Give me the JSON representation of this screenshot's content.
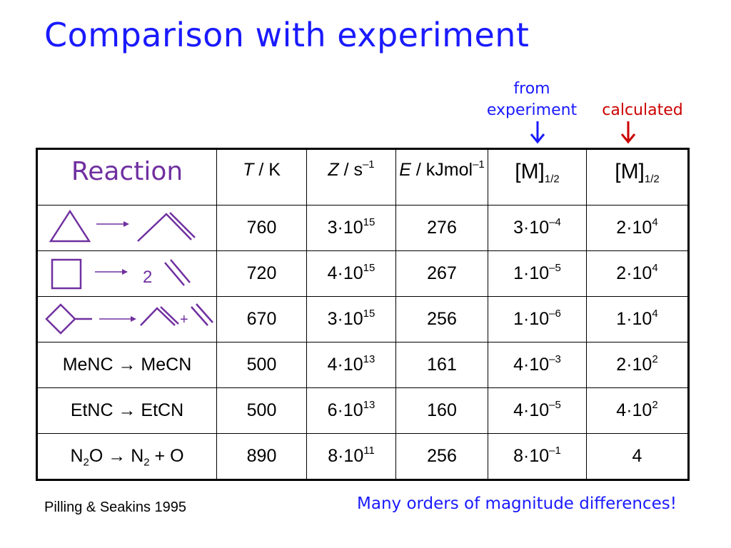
{
  "title": "Comparison with experiment",
  "labels": {
    "from_experiment_line1": "from",
    "from_experiment_line2": "experiment",
    "calculated": "calculated"
  },
  "table": {
    "headers": {
      "reaction": "Reaction",
      "T_var": "T",
      "T_unit": " / K",
      "Z_var": "Z",
      "Z_unit": " / s",
      "Z_exp": "–1",
      "E_var": "E",
      "E_unit": " / kJmol",
      "E_exp": "–1",
      "M_exp": "[M]",
      "M_exp_sub": "1/2",
      "M_calc": "[M]",
      "M_calc_sub": "1/2"
    },
    "rows": [
      {
        "reaction": "",
        "product_coeff": "",
        "T": "760",
        "Z_base": "3·10",
        "Z_exp": "15",
        "E": "276",
        "M_exp_base": "3·10",
        "M_exp_exp": "–4",
        "M_calc_base": "2·10",
        "M_calc_exp": "4"
      },
      {
        "reaction": "",
        "product_coeff": "2",
        "T": "720",
        "Z_base": "4·10",
        "Z_exp": "15",
        "E": "267",
        "M_exp_base": "1·10",
        "M_exp_exp": "–5",
        "M_calc_base": "2·10",
        "M_calc_exp": "4"
      },
      {
        "reaction": "",
        "product_plus": "+",
        "T": "670",
        "Z_base": "3·10",
        "Z_exp": "15",
        "E": "256",
        "M_exp_base": "1·10",
        "M_exp_exp": "–6",
        "M_calc_base": "1·10",
        "M_calc_exp": "4"
      },
      {
        "reaction": "MeNC → MeCN",
        "T": "500",
        "Z_base": "4·10",
        "Z_exp": "13",
        "E": "161",
        "M_exp_base": "4·10",
        "M_exp_exp": "–3",
        "M_calc_base": "2·10",
        "M_calc_exp": "2"
      },
      {
        "reaction": "EtNC → EtCN",
        "T": "500",
        "Z_base": "6·10",
        "Z_exp": "13",
        "E": "160",
        "M_exp_base": "4·10",
        "M_exp_exp": "–5",
        "M_calc_base": "4·10",
        "M_calc_exp": "2"
      },
      {
        "reaction_parts": [
          "N",
          "2",
          "O → N",
          "2",
          " + O"
        ],
        "T": "890",
        "Z_base": "8·10",
        "Z_exp": "11",
        "E": "256",
        "M_exp_base": "8·10",
        "M_exp_exp": "–1",
        "M_calc_value": "4"
      }
    ]
  },
  "citation": "Pilling & Seakins 1995",
  "note": "Many orders of magnitude differences!",
  "colors": {
    "title": "#1a1aff",
    "experiment": "#1a1aff",
    "calculated": "#cc0000",
    "reaction": "#7030a0"
  }
}
